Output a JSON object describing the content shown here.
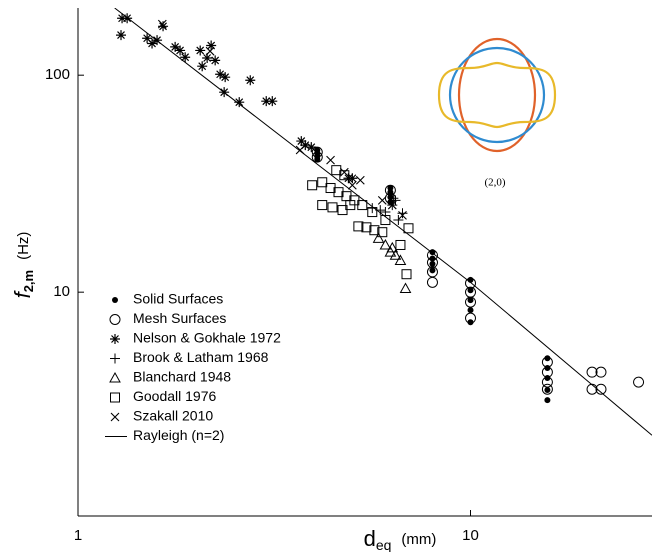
{
  "chart_data": {
    "type": "scatter",
    "x_label": {
      "text": "d",
      "subscript": "eq",
      "unit": "(mm)"
    },
    "y_label": {
      "text": "f",
      "subscript": "2,m",
      "unit": "(Hz)"
    },
    "annotation": "(2,0)",
    "xlog": true,
    "ylog": true,
    "xlim": [
      1,
      29
    ],
    "ylim": [
      0.93,
      204
    ],
    "xticks": [
      1,
      10
    ],
    "yticks": [
      10,
      100
    ],
    "legend": "lower left",
    "series": [
      {
        "name": "Solid Surfaces",
        "marker": "dot",
        "color": "#000000",
        "x": [
          4.07,
          4.07,
          4.07,
          4.07,
          6.25,
          6.25,
          6.25,
          6.25,
          8.0,
          8.0,
          8.0,
          8.0,
          10,
          10,
          10,
          10,
          10,
          15.7,
          15.7,
          15.7,
          15.7,
          15.7
        ],
        "values": [
          45.1,
          43.7,
          42.3,
          41.0,
          30.2,
          28.9,
          27.4,
          26.0,
          15.3,
          14.3,
          13.5,
          12.6,
          11.4,
          10.2,
          9.19,
          8.27,
          7.27,
          4.96,
          4.47,
          4.02,
          3.54,
          3.18
        ]
      },
      {
        "name": "Mesh Surfaces",
        "marker": "circle",
        "color": "#000000",
        "x": [
          4.07,
          4.07,
          6.25,
          6.25,
          8.0,
          8.0,
          8.0,
          8.0,
          10,
          10,
          10,
          10,
          15.7,
          15.7,
          15.7,
          15.7,
          20.4,
          21.5,
          20.4,
          21.5,
          26.8
        ],
        "values": [
          44.2,
          41.9,
          29.5,
          27.1,
          14.8,
          13.7,
          12.4,
          11.1,
          11.0,
          10.0,
          9.0,
          7.59,
          4.76,
          4.28,
          3.85,
          3.57,
          4.28,
          4.28,
          3.57,
          3.57,
          3.85
        ]
      },
      {
        "name": "Nelson & Gokhale 1972",
        "marker": "asterisk",
        "color": "#000000",
        "x": [
          1.295,
          1.334,
          1.287,
          1.5,
          1.544,
          1.647,
          1.59,
          1.768,
          1.82,
          1.875,
          2.048,
          2.133,
          2.072,
          2.184,
          2.236,
          2.302,
          2.371,
          2.575,
          2.357,
          2.747,
          3.017,
          3.126,
          3.706,
          3.794,
          3.93,
          4.886,
          5.0
        ],
        "values": [
          183,
          183,
          153,
          148,
          140,
          168,
          145,
          135,
          130,
          121,
          130,
          120,
          110,
          137,
          117,
          101,
          97.9,
          75.1,
          83.5,
          94.8,
          75.9,
          75.9,
          49.7,
          47.6,
          46.6,
          33.5,
          33.5
        ]
      },
      {
        "name": "Brook & Latham 1968",
        "marker": "plus",
        "color": "#000000",
        "x": [
          5.62,
          5.89,
          6.32,
          6.44,
          6.71,
          6.55,
          6.07,
          6.36
        ],
        "values": [
          24.4,
          23.9,
          25.2,
          26.5,
          23.1,
          21.5,
          23.4,
          27.1
        ]
      },
      {
        "name": "Blanchard 1948",
        "marker": "triangle",
        "color": "#000000",
        "x": [
          5.83,
          6.07,
          6.25,
          6.44,
          6.63,
          6.83,
          6.32
        ],
        "values": [
          17.7,
          16.5,
          15.3,
          14.8,
          14.0,
          10.4,
          16.0
        ]
      },
      {
        "name": "Goodall 1976",
        "marker": "square",
        "color": "#000000",
        "x": [
          3.95,
          4.19,
          4.4,
          4.61,
          4.83,
          5.06,
          5.3,
          5.62,
          6.07,
          4.19,
          4.45,
          4.72,
          4.94,
          5.18,
          5.43,
          5.69,
          5.96,
          6.63,
          6.95,
          6.87,
          4.55,
          4.77
        ],
        "values": [
          31.1,
          32.1,
          30.2,
          28.9,
          27.7,
          26.5,
          25.2,
          23.4,
          21.5,
          25.2,
          24.6,
          23.9,
          25.2,
          20.1,
          19.9,
          19.3,
          18.9,
          16.5,
          19.7,
          12.1,
          36.5,
          34.6
        ]
      },
      {
        "name": "Szakall 2010",
        "marker": "x",
        "color": "#000000",
        "x": [
          1.64,
          2.17,
          3.68,
          4.4,
          4.77,
          5.24,
          6.32,
          6.71,
          5.96,
          5.0
        ],
        "values": [
          172,
          129,
          45.2,
          40.6,
          35.7,
          32.8,
          25.2,
          22.6,
          26.5,
          31.1
        ]
      },
      {
        "name": "Rayleigh (n=2)",
        "marker": "line",
        "color": "#000000",
        "x": [
          1.24,
          10,
          29
        ],
        "values": [
          204,
          11.1,
          2.19
        ]
      }
    ]
  }
}
